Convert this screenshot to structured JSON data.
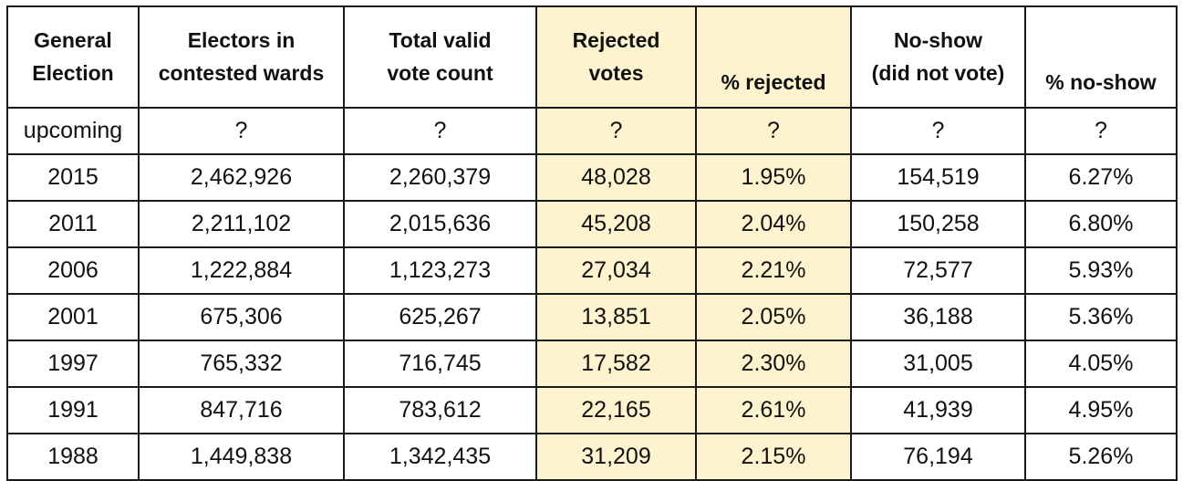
{
  "table": {
    "headers": [
      [
        "General",
        "Election"
      ],
      [
        "Electors in",
        "contested wards"
      ],
      [
        "Total valid",
        "vote count"
      ],
      [
        "Rejected",
        "votes"
      ],
      [
        "% rejected"
      ],
      [
        "No-show",
        "(did not vote)"
      ],
      [
        "% no-show"
      ]
    ],
    "highlight_color": "#fdf3ce",
    "rows": [
      [
        "upcoming",
        "?",
        "?",
        "?",
        "?",
        "?",
        "?"
      ],
      [
        "2015",
        "2,462,926",
        "2,260,379",
        "48,028",
        "1.95%",
        "154,519",
        "6.27%"
      ],
      [
        "2011",
        "2,211,102",
        "2,015,636",
        "45,208",
        "2.04%",
        "150,258",
        "6.80%"
      ],
      [
        "2006",
        "1,222,884",
        "1,123,273",
        "27,034",
        "2.21%",
        "72,577",
        "5.93%"
      ],
      [
        "2001",
        "675,306",
        "625,267",
        "13,851",
        "2.05%",
        "36,188",
        "5.36%"
      ],
      [
        "1997",
        "765,332",
        "716,745",
        "17,582",
        "2.30%",
        "31,005",
        "4.05%"
      ],
      [
        "1991",
        "847,716",
        "783,612",
        "22,165",
        "2.61%",
        "41,939",
        "4.95%"
      ],
      [
        "1988",
        "1,449,838",
        "1,342,435",
        "31,209",
        "2.15%",
        "76,194",
        "5.26%"
      ]
    ]
  }
}
